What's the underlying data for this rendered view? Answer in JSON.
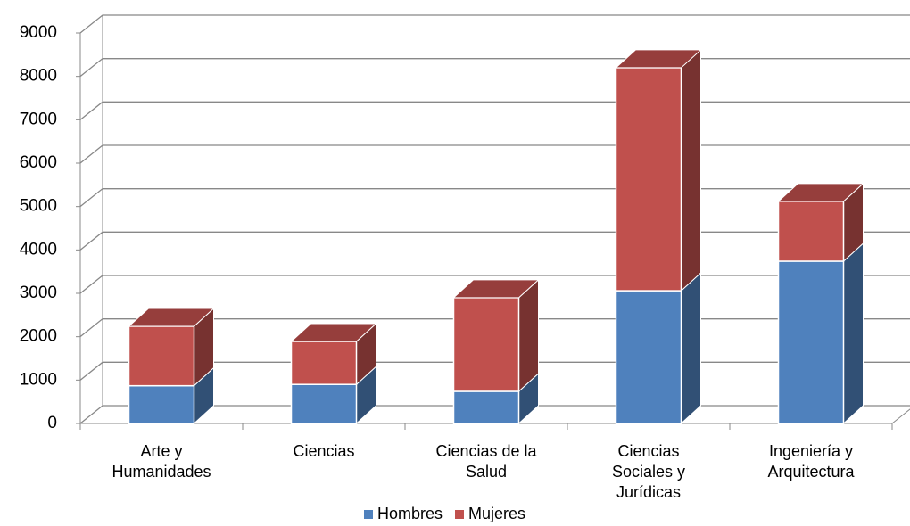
{
  "chart_data": {
    "type": "bar3d-stacked",
    "categories": [
      "Arte y Humanidades",
      "Ciencias",
      "Ciencias de la Salud",
      "Ciencias Sociales y Jurídicas",
      "Ingeniería y Arquitectura"
    ],
    "series": [
      {
        "name": "Hombres",
        "color": "#4f81bd",
        "values": [
          870,
          900,
          740,
          3060,
          3740
        ]
      },
      {
        "name": "Mujeres",
        "color": "#c0504d",
        "values": [
          1370,
          990,
          2160,
          5140,
          1380
        ]
      }
    ],
    "ylim": [
      0,
      9000
    ],
    "yticks": [
      0,
      1000,
      2000,
      3000,
      4000,
      5000,
      6000,
      7000,
      8000,
      9000
    ],
    "grid": true
  }
}
